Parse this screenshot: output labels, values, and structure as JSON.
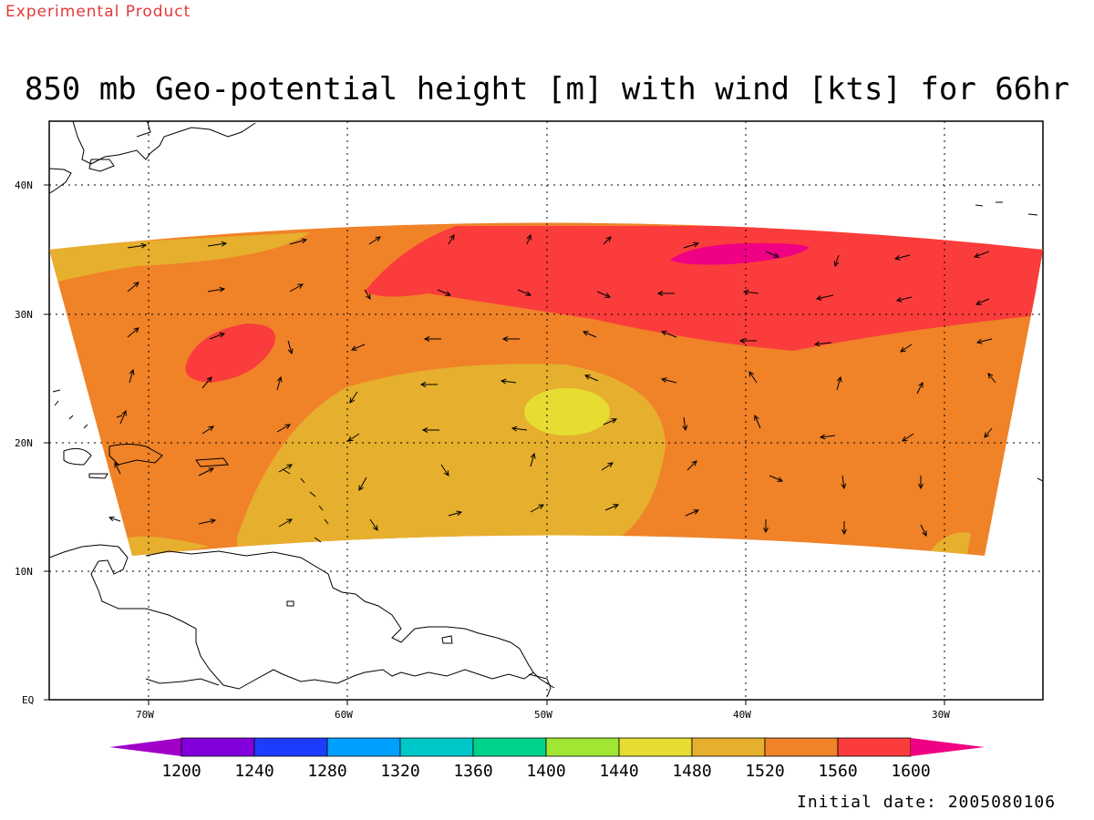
{
  "header": {
    "experimental_label": "Experimental Product",
    "title": "850 mb Geo-potential height [m] with wind [kts] for 66hr"
  },
  "footer": {
    "initial_date": "Initial date: 2005080106"
  },
  "map": {
    "lat_labels": [
      "40N",
      "30N",
      "20N",
      "10N",
      "EQ"
    ],
    "lon_labels": [
      "70W",
      "60W",
      "50W",
      "40W",
      "30W"
    ],
    "field": "850 mb Geo-potential height [m]",
    "vectors": "wind [kts]"
  },
  "colorbar": {
    "levels": [
      "1200",
      "1240",
      "1280",
      "1320",
      "1360",
      "1400",
      "1440",
      "1480",
      "1520",
      "1560",
      "1600"
    ],
    "colors": [
      "#a000c8",
      "#8200dc",
      "#1e3cff",
      "#00a0ff",
      "#00c8c8",
      "#00d28c",
      "#a0e632",
      "#e6dc32",
      "#e6af2d",
      "#f08228",
      "#fa3c3c",
      "#f00082"
    ]
  }
}
